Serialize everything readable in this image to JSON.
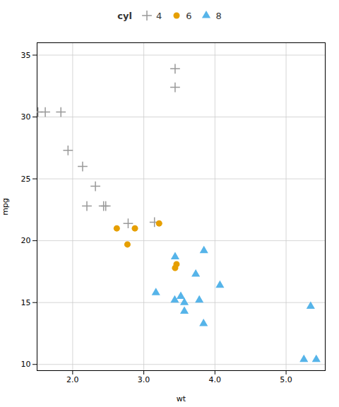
{
  "chart_data": {
    "type": "scatter",
    "xlabel": "wt",
    "ylabel": "mpg",
    "legend_title": "cyl",
    "legend": "top",
    "grid": true,
    "xlim": [
      1.5,
      5.55
    ],
    "ylim": [
      9.5,
      36
    ],
    "xticks": [
      2,
      3,
      4,
      5
    ],
    "yticks": [
      10,
      15,
      20,
      25,
      30,
      35
    ],
    "series": [
      {
        "name": "4",
        "color": "#999999",
        "marker": "plus",
        "x": [
          1.615,
          1.835,
          2.465,
          2.32,
          2.2,
          1.935,
          2.14,
          1.513,
          2.78,
          3.15,
          2.435,
          3.44,
          3.44
        ],
        "values": [
          30.4,
          30.4,
          22.8,
          24.4,
          22.8,
          27.3,
          26.0,
          30.4,
          21.4,
          21.5,
          22.8,
          32.4,
          33.9
        ]
      },
      {
        "name": "6",
        "color": "#E69F00",
        "marker": "circle",
        "x": [
          2.875,
          2.62,
          3.215,
          3.46,
          3.44,
          2.77
        ],
        "values": [
          21.0,
          21.0,
          21.4,
          18.1,
          17.8,
          19.7
        ]
      },
      {
        "name": "8",
        "color": "#56B4E9",
        "marker": "triangle",
        "x": [
          3.44,
          3.57,
          4.07,
          3.73,
          3.78,
          5.25,
          5.424,
          5.345,
          3.52,
          3.435,
          3.84,
          3.845,
          3.17,
          3.57
        ],
        "values": [
          18.7,
          14.3,
          16.4,
          17.3,
          15.2,
          10.4,
          10.4,
          14.7,
          15.5,
          15.2,
          13.3,
          19.2,
          15.8,
          15.0
        ]
      }
    ]
  }
}
